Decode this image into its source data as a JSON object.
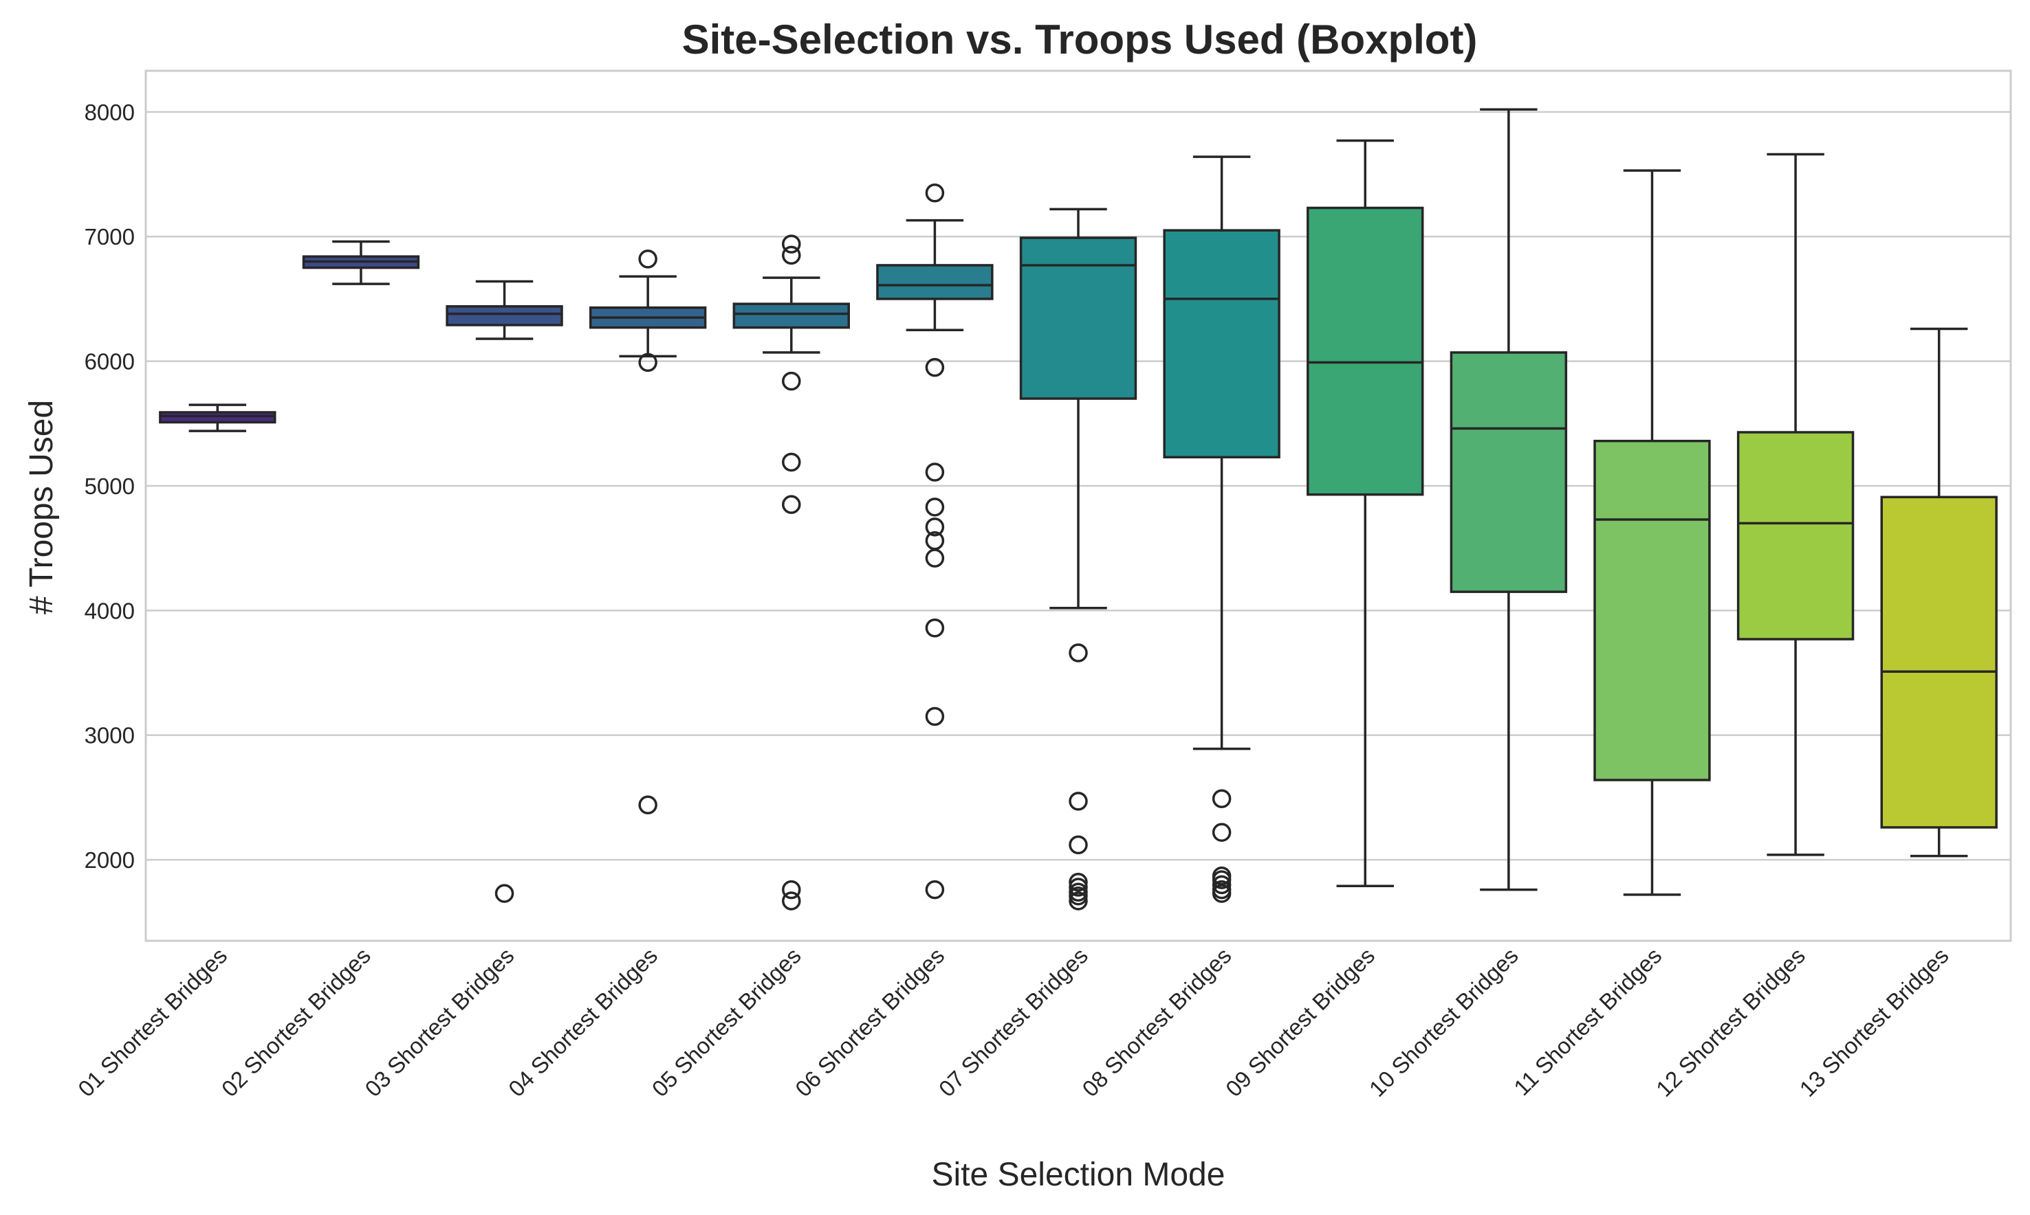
{
  "chart_data": {
    "type": "boxplot",
    "title": "Site-Selection vs. Troops Used (Boxplot)",
    "xlabel": "Site Selection Mode",
    "ylabel": "# Troops Used",
    "ylim": [
      1350,
      8330
    ],
    "yticks": [
      2000,
      3000,
      4000,
      5000,
      6000,
      7000,
      8000
    ],
    "ytick_labels": [
      "2000",
      "3000",
      "4000",
      "5000",
      "6000",
      "7000",
      "8000"
    ],
    "grid": "horizontal",
    "legend": "none",
    "categories": [
      "01 Shortest Bridges",
      "02 Shortest Bridges",
      "03 Shortest Bridges",
      "04 Shortest Bridges",
      "05 Shortest Bridges",
      "06 Shortest Bridges",
      "07 Shortest Bridges",
      "08 Shortest Bridges",
      "09 Shortest Bridges",
      "10 Shortest Bridges",
      "11 Shortest Bridges",
      "12 Shortest Bridges",
      "13 Shortest Bridges"
    ],
    "boxes": [
      {
        "whislo": 5440,
        "q1": 5510,
        "med": 5560,
        "q3": 5590,
        "whishi": 5650,
        "fliers": [],
        "color": "#472d7b"
      },
      {
        "whislo": 6620,
        "q1": 6750,
        "med": 6800,
        "q3": 6840,
        "whishi": 6960,
        "fliers": [],
        "color": "#3e4989"
      },
      {
        "whislo": 6180,
        "q1": 6290,
        "med": 6380,
        "q3": 6440,
        "whishi": 6640,
        "fliers": [
          1730
        ],
        "color": "#3b528b"
      },
      {
        "whislo": 6040,
        "q1": 6270,
        "med": 6350,
        "q3": 6430,
        "whishi": 6680,
        "fliers": [
          6820,
          5990,
          2440
        ],
        "color": "#33638d"
      },
      {
        "whislo": 6070,
        "q1": 6270,
        "med": 6380,
        "q3": 6460,
        "whishi": 6670,
        "fliers": [
          6940,
          6850,
          5840,
          5190,
          4850,
          1760,
          1670
        ],
        "color": "#2d708e"
      },
      {
        "whislo": 6250,
        "q1": 6500,
        "med": 6610,
        "q3": 6770,
        "whishi": 7130,
        "fliers": [
          7350,
          5950,
          5110,
          4830,
          4670,
          4560,
          4420,
          3860,
          3150,
          1760
        ],
        "color": "#287d8e"
      },
      {
        "whislo": 4020,
        "q1": 5700,
        "med": 6770,
        "q3": 6990,
        "whishi": 7220,
        "fliers": [
          3660,
          2470,
          2120,
          1820,
          1780,
          1740,
          1710,
          1670
        ],
        "color": "#238a8d"
      },
      {
        "whislo": 2890,
        "q1": 5230,
        "med": 6500,
        "q3": 7050,
        "whishi": 7640,
        "fliers": [
          2490,
          2220,
          1870,
          1840,
          1800,
          1760,
          1730
        ],
        "color": "#21908d"
      },
      {
        "whislo": 1790,
        "q1": 4930,
        "med": 5990,
        "q3": 7230,
        "whishi": 7770,
        "fliers": [],
        "color": "#3aa674"
      },
      {
        "whislo": 1760,
        "q1": 4150,
        "med": 5460,
        "q3": 6070,
        "whishi": 8020,
        "fliers": [],
        "color": "#52b072"
      },
      {
        "whislo": 1720,
        "q1": 2640,
        "med": 4730,
        "q3": 5360,
        "whishi": 7530,
        "fliers": [],
        "color": "#7dc363"
      },
      {
        "whislo": 2040,
        "q1": 3770,
        "med": 4700,
        "q3": 5430,
        "whishi": 7660,
        "fliers": [],
        "color": "#9bcb43"
      },
      {
        "whislo": 2030,
        "q1": 2260,
        "med": 3510,
        "q3": 4910,
        "whishi": 6260,
        "fliers": [],
        "color": "#bac932"
      }
    ]
  }
}
